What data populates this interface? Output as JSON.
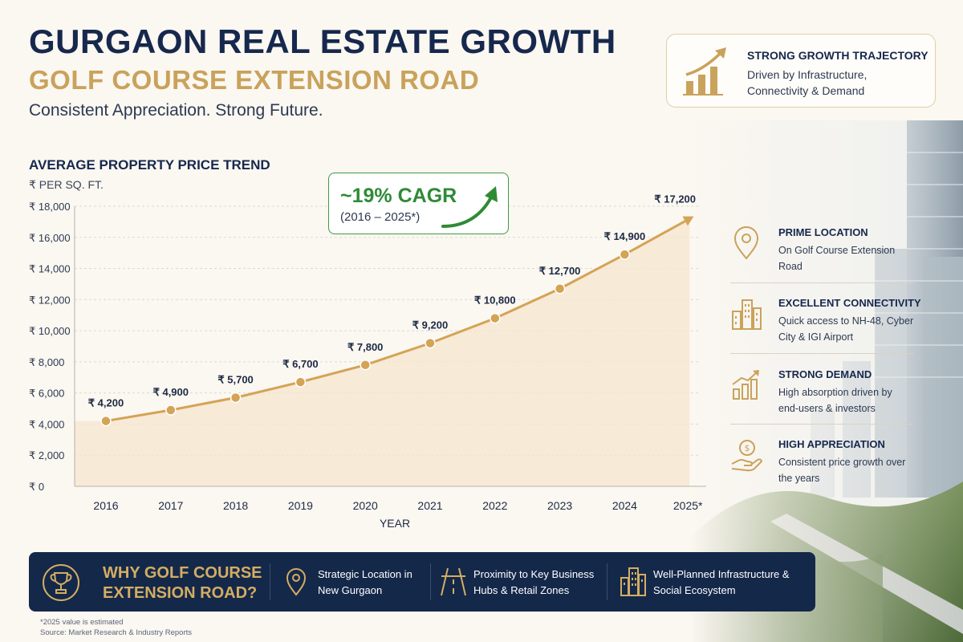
{
  "header": {
    "title": "GURGAON REAL ESTATE GROWTH",
    "subtitle": "GOLF COURSE EXTENSION ROAD",
    "tagline": "Consistent Appreciation. Strong Future."
  },
  "trajectory_card": {
    "title": "STRONG GROWTH TRAJECTORY",
    "description": "Driven by Infrastructure, Connectivity & Demand",
    "icon": "growth-bars-arrow-icon"
  },
  "cagr": {
    "value": "~19% CAGR",
    "period": "(2016 – 2025*)"
  },
  "chart_data": {
    "type": "area",
    "title": "AVERAGE PROPERTY PRICE TREND",
    "subtitle": "₹ PER SQ. FT.",
    "xlabel": "YEAR",
    "ylabel": "",
    "categories": [
      "2016",
      "2017",
      "2018",
      "2019",
      "2020",
      "2021",
      "2022",
      "2023",
      "2024",
      "2025*"
    ],
    "values": [
      4200,
      4900,
      5700,
      6700,
      7800,
      9200,
      10800,
      12700,
      14900,
      17200
    ],
    "data_labels": [
      "₹ 4,200",
      "₹ 4,900",
      "₹ 5,700",
      "₹ 6,700",
      "₹ 7,800",
      "₹ 9,200",
      "₹ 10,800",
      "₹ 12,700",
      "₹ 14,900",
      "₹ 17,200"
    ],
    "ylim": [
      0,
      18000
    ],
    "yticks": [
      0,
      2000,
      4000,
      6000,
      8000,
      10000,
      12000,
      14000,
      16000,
      18000
    ],
    "ytick_labels": [
      "₹ 0",
      "₹ 2,000",
      "₹ 4,000",
      "₹ 6,000",
      "₹ 8,000",
      "₹ 10,000",
      "₹ 12,000",
      "₹ 14,000",
      "₹ 16,000",
      "₹ 18,000"
    ],
    "grid": true,
    "colors": {
      "line": "#d4a355",
      "marker": "#d4a355",
      "fill": "#f6e6cd"
    }
  },
  "features": [
    {
      "icon": "location-pin-icon",
      "title": "PRIME LOCATION",
      "description": "On Golf Course Extension Road"
    },
    {
      "icon": "buildings-icon",
      "title": "EXCELLENT CONNECTIVITY",
      "description": "Quick access to NH-48, Cyber City & IGI Airport"
    },
    {
      "icon": "growth-chart-icon",
      "title": "STRONG DEMAND",
      "description": "High absorption driven by end-users & investors"
    },
    {
      "icon": "hand-coin-icon",
      "title": "HIGH APPRECIATION",
      "description": "Consistent price growth over the years"
    }
  ],
  "banner": {
    "heading": "WHY GOLF COURSE EXTENSION ROAD?",
    "items": [
      {
        "icon": "location-pin-icon",
        "text": "Strategic Location in New Gurgaon"
      },
      {
        "icon": "road-icon",
        "text": "Proximity to Key Business Hubs & Retail Zones"
      },
      {
        "icon": "buildings-icon",
        "text": "Well-Planned Infrastructure & Social Ecosystem"
      }
    ]
  },
  "footnote": "*2025 value is estimated",
  "source": "Source: Market Research & Industry Reports",
  "colors": {
    "navy": "#16284d",
    "gold": "#c9a25b",
    "green": "#2f8a36"
  }
}
